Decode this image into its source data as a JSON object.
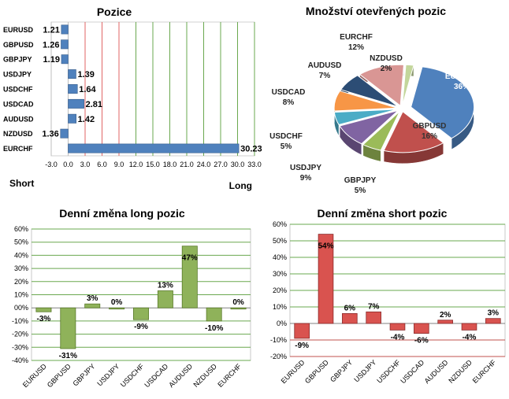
{
  "chart_data": [
    {
      "type": "bar",
      "orientation": "horizontal",
      "title": "Pozice",
      "categories": [
        "EURUSD",
        "GBPUSD",
        "GBPJPY",
        "USDJPY",
        "USDCHF",
        "USDCAD",
        "AUDUSD",
        "NZDUSD",
        "EURCHF"
      ],
      "values": [
        -1.21,
        -1.26,
        -1.19,
        1.39,
        1.64,
        2.81,
        1.42,
        -1.36,
        30.23
      ],
      "value_labels": [
        "1.21",
        "1.26",
        "1.19",
        "1.39",
        "1.64",
        "2.81",
        "1.42",
        "1.36",
        "30.23"
      ],
      "xlim": [
        -3,
        33
      ],
      "xticks": [
        "-3.0",
        "0.0",
        "3.0",
        "6.0",
        "9.0",
        "12.0",
        "15.0",
        "18.0",
        "21.0",
        "24.0",
        "27.0",
        "30.0",
        "33.0"
      ],
      "left_label": "Short",
      "right_label": "Long",
      "grid": true,
      "colors": {
        "bar": "#4f81bd",
        "grid_red": "#e06666",
        "grid_green": "#6aa84f"
      }
    },
    {
      "type": "pie",
      "title": "Množství otevřených pozic",
      "slices": [
        {
          "label": "EURUSD",
          "value": 36,
          "display": "36%",
          "color": "#4f81bd"
        },
        {
          "label": "GBPUSD",
          "value": 16,
          "display": "16%",
          "color": "#c0504d"
        },
        {
          "label": "GBPJPY",
          "value": 5,
          "display": "5%",
          "color": "#9bbb59"
        },
        {
          "label": "USDJPY",
          "value": 9,
          "display": "9%",
          "color": "#8064a2"
        },
        {
          "label": "USDCHF",
          "value": 5,
          "display": "5%",
          "color": "#4bacc6"
        },
        {
          "label": "USDCAD",
          "value": 8,
          "display": "8%",
          "color": "#f79646"
        },
        {
          "label": "AUDUSD",
          "value": 7,
          "display": "7%",
          "color": "#2c4d75"
        },
        {
          "label": "EURCHF",
          "value": 12,
          "display": "12%",
          "color": "#d99694"
        },
        {
          "label": "NZDUSD",
          "value": 2,
          "display": "2%",
          "color": "#c3d69b"
        }
      ]
    },
    {
      "type": "bar",
      "title": "Denní změna long pozic",
      "categories": [
        "EURUSD",
        "GBPUSD",
        "GBPJPY",
        "USDJPY",
        "USDCHF",
        "USDCAD",
        "AUDUSD",
        "NZDUSD",
        "EURCHF"
      ],
      "values": [
        -3,
        -31,
        3,
        0,
        -9,
        13,
        47,
        -10,
        0
      ],
      "value_labels": [
        "-3%",
        "-31%",
        "3%",
        "0%",
        "-9%",
        "13%",
        "47%",
        "-10%",
        "0%"
      ],
      "ylim": [
        -40,
        60
      ],
      "yticks": [
        "-40%",
        "-30%",
        "-20%",
        "-10%",
        "00%",
        "10%",
        "20%",
        "30%",
        "40%",
        "50%",
        "60%"
      ],
      "grid": true,
      "colors": {
        "bar": "#8fb25a",
        "grid": "#6aa84f"
      }
    },
    {
      "type": "bar",
      "title": "Denní změna short pozic",
      "categories": [
        "EURUSD",
        "GBPUSD",
        "GBPJPY",
        "USDJPY",
        "USDCHF",
        "USDCAD",
        "AUDUSD",
        "NZDUSD",
        "EURCHF"
      ],
      "values": [
        -9,
        54,
        6,
        7,
        -4,
        -6,
        2,
        -4,
        3
      ],
      "value_labels": [
        "-9%",
        "54%",
        "6%",
        "7%",
        "-4%",
        "-6%",
        "2%",
        "-4%",
        "3%"
      ],
      "ylim": [
        -20,
        60
      ],
      "yticks": [
        "-20%",
        "-10%",
        "0%",
        "10%",
        "20%",
        "30%",
        "40%",
        "50%",
        "60%"
      ],
      "grid": true,
      "colors": {
        "bar": "#d9534f",
        "grid_green": "#6aa84f",
        "grid_red": "#c0504d"
      }
    }
  ]
}
